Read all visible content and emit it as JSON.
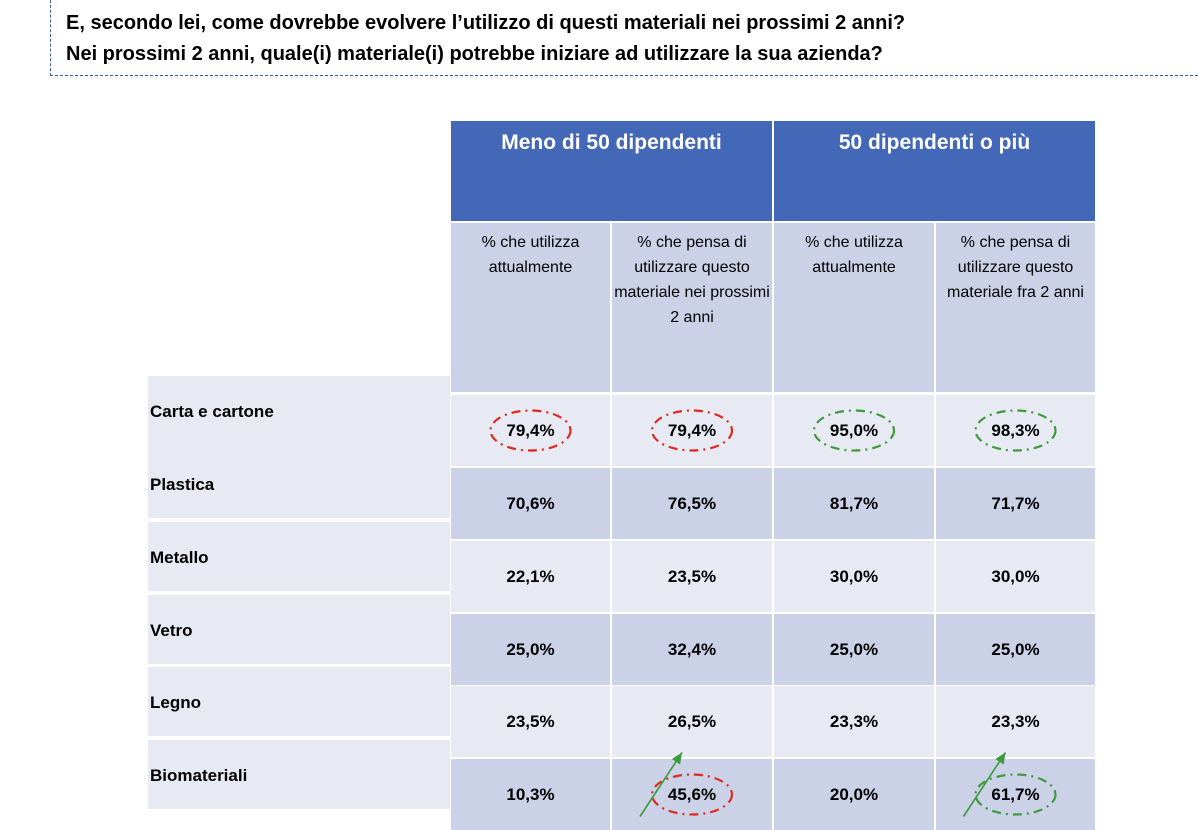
{
  "title": {
    "line1": "E, secondo lei, come dovrebbe evolvere l’utilizzo di questi materiali nei prossimi 2 anni?",
    "line2": "Nei prossimi 2 anni, quale(i) materiale(i) potrebbe iniziare ad utilizzare la sua azienda?"
  },
  "chart_data": {
    "type": "table",
    "groups": [
      "Meno di 50 dipendenti",
      "50 dipendenti o più"
    ],
    "columns": [
      "% che utilizza attualmente",
      "% che pensa di utilizzare questo materiale nei prossimi 2 anni",
      "% che utilizza attualmente",
      "% che  pensa di utilizzare questo materiale fra 2 anni"
    ],
    "rows": [
      {
        "label": "Carta e cartone",
        "values": [
          "79,4%",
          "79,4%",
          "95,0%",
          "98,3%"
        ]
      },
      {
        "label": "Plastica",
        "values": [
          "70,6%",
          "76,5%",
          "81,7%",
          "71,7%"
        ]
      },
      {
        "label": "Metallo",
        "values": [
          "22,1%",
          "23,5%",
          "30,0%",
          "30,0%"
        ]
      },
      {
        "label": "Vetro",
        "values": [
          "25,0%",
          "32,4%",
          "25,0%",
          "25,0%"
        ]
      },
      {
        "label": "Legno",
        "values": [
          "23,5%",
          "26,5%",
          "23,3%",
          "23,3%"
        ]
      },
      {
        "label": "Biomateriali",
        "values": [
          "10,3%",
          "45,6%",
          "20,0%",
          "61,7%"
        ]
      }
    ],
    "highlights": [
      {
        "row": 0,
        "col": 0,
        "color": "#e0281e"
      },
      {
        "row": 0,
        "col": 1,
        "color": "#e0281e"
      },
      {
        "row": 0,
        "col": 2,
        "color": "#3c9a3c"
      },
      {
        "row": 0,
        "col": 3,
        "color": "#3c9a3c"
      },
      {
        "row": 5,
        "col": 1,
        "color": "#e0281e"
      },
      {
        "row": 5,
        "col": 3,
        "color": "#3c9a3c"
      }
    ],
    "arrows": [
      {
        "row": 5,
        "col": 1,
        "color": "#3c9a3c"
      },
      {
        "row": 5,
        "col": 3,
        "color": "#3c9a3c"
      }
    ]
  },
  "colors": {
    "header": "#4468b8",
    "subheader": "#cbd1e6",
    "row_light": "#e8eaf3",
    "row_dark": "#cbd1e6"
  }
}
